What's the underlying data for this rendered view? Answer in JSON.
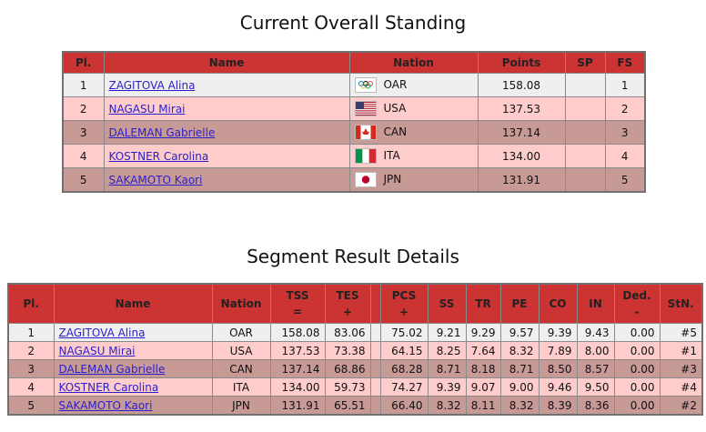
{
  "standing": {
    "title": "Current Overall Standing",
    "header": [
      "Pl.",
      "Name",
      "Nation",
      "Points",
      "SP",
      "FS"
    ],
    "rows": [
      {
        "pl": "1",
        "name": "ZAGITOVA Alina",
        "nation": "OAR",
        "points": "158.08",
        "fs": "1"
      },
      {
        "pl": "2",
        "name": "NAGASU Mirai",
        "nation": "USA",
        "points": "137.53",
        "fs": "2"
      },
      {
        "pl": "3",
        "name": "DALEMAN Gabrielle",
        "nation": "CAN",
        "points": "137.14",
        "fs": "3"
      },
      {
        "pl": "4",
        "name": "KOSTNER Carolina",
        "nation": "ITA",
        "points": "134.00",
        "fs": "4"
      },
      {
        "pl": "5",
        "name": "SAKAMOTO Kaori",
        "nation": "JPN",
        "points": "131.91",
        "fs": "5"
      }
    ]
  },
  "segment": {
    "title": "Segment Result Details",
    "header": [
      [
        "Pl."
      ],
      [
        "Name"
      ],
      [
        "Nation"
      ],
      [
        "TSS",
        "="
      ],
      [
        "TES",
        "+"
      ],
      [
        "PCS",
        "+"
      ],
      [
        "SS"
      ],
      [
        "TR"
      ],
      [
        "PE"
      ],
      [
        "CO"
      ],
      [
        "IN"
      ],
      [
        "Ded.",
        "-"
      ],
      [
        "StN."
      ]
    ],
    "rows": [
      [
        "1",
        "ZAGITOVA Alina",
        "OAR",
        "158.08",
        "83.06",
        "75.02",
        "9.21",
        "9.29",
        "9.57",
        "9.39",
        "9.43",
        "0.00",
        "#5"
      ],
      [
        "2",
        "NAGASU Mirai",
        "USA",
        "137.53",
        "73.38",
        "64.15",
        "8.25",
        "7.64",
        "8.32",
        "7.89",
        "8.00",
        "0.00",
        "#1"
      ],
      [
        "3",
        "DALEMAN Gabrielle",
        "CAN",
        "137.14",
        "68.86",
        "68.28",
        "8.71",
        "8.18",
        "8.71",
        "8.50",
        "8.57",
        "0.00",
        "#3"
      ],
      [
        "4",
        "KOSTNER Carolina",
        "ITA",
        "134.00",
        "59.73",
        "74.27",
        "9.39",
        "9.07",
        "9.00",
        "9.46",
        "9.50",
        "0.00",
        "#4"
      ],
      [
        "5",
        "SAKAMOTO Kaori",
        "JPN",
        "131.91",
        "65.51",
        "66.40",
        "8.32",
        "8.11",
        "8.32",
        "8.39",
        "8.36",
        "0.00",
        "#2"
      ]
    ]
  }
}
